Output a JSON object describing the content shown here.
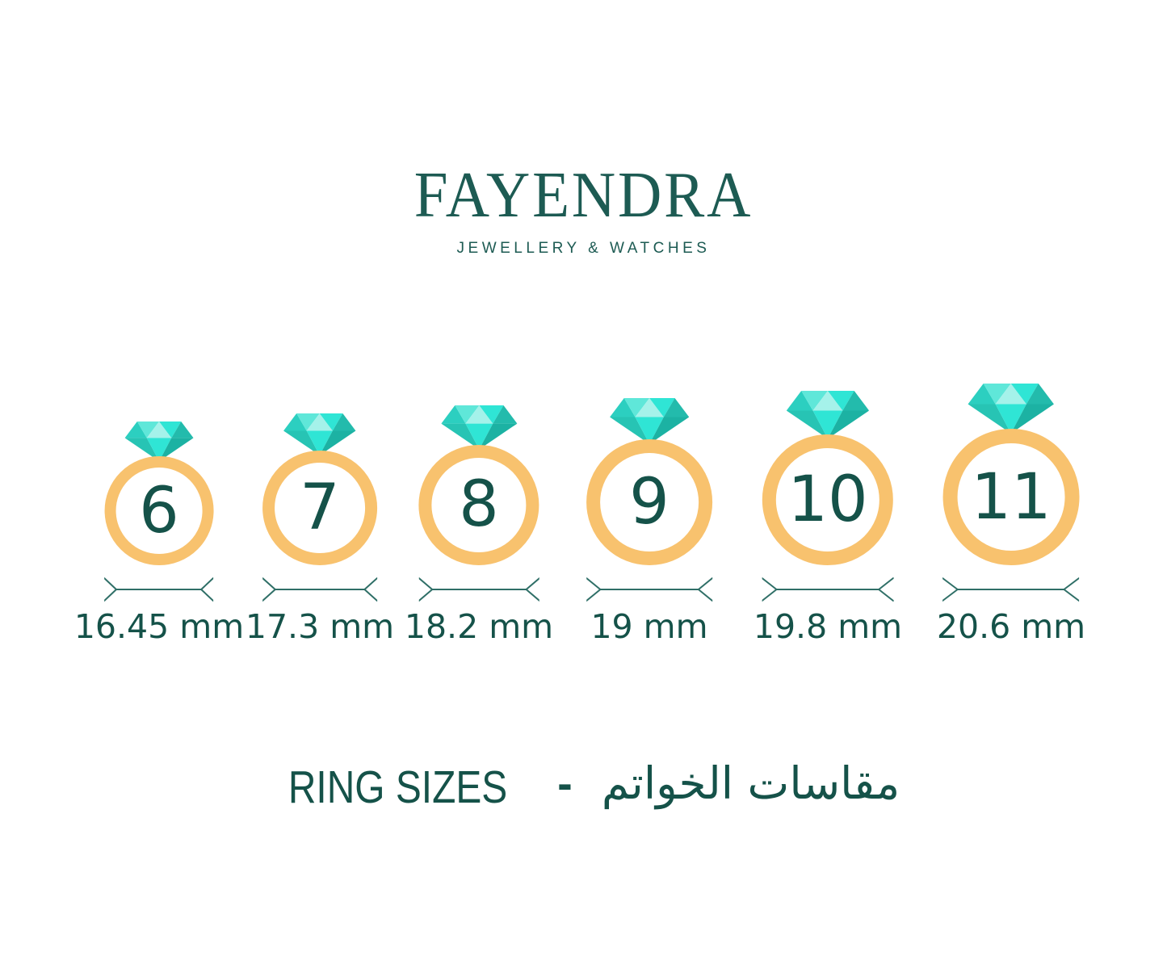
{
  "brand": {
    "name": "FAYENDRA",
    "tagline": "JEWELLERY & WATCHES"
  },
  "rings": [
    {
      "size": "6",
      "diameter_mm": 16.45,
      "diameter_label": "16.45 mm"
    },
    {
      "size": "7",
      "diameter_mm": 17.3,
      "diameter_label": "17.3 mm"
    },
    {
      "size": "8",
      "diameter_mm": 18.2,
      "diameter_label": "18.2 mm"
    },
    {
      "size": "9",
      "diameter_mm": 19,
      "diameter_label": "19 mm"
    },
    {
      "size": "10",
      "diameter_mm": 19.8,
      "diameter_label": "19.8 mm"
    },
    {
      "size": "11",
      "diameter_mm": 20.6,
      "diameter_label": "20.6 mm"
    }
  ],
  "title": {
    "en": "RING SIZES",
    "separator": "-",
    "ar": "مقاسات الخواتم"
  },
  "colors": {
    "background": "#FFFFFF",
    "brand_teal": "#1D5B53",
    "text_teal": "#155249",
    "band_gold": "#F8C26E",
    "indicator_teal": "#2F6F67",
    "gem_pale": "#A5F2EA",
    "gem_light": "#5FE7D9",
    "gem_bright": "#2FE5D5",
    "gem_mid": "#2CCFC0",
    "gem_mid2": "#27C4B4",
    "gem_dark": "#23BBAC",
    "gem_deep": "#1CB2A3"
  }
}
